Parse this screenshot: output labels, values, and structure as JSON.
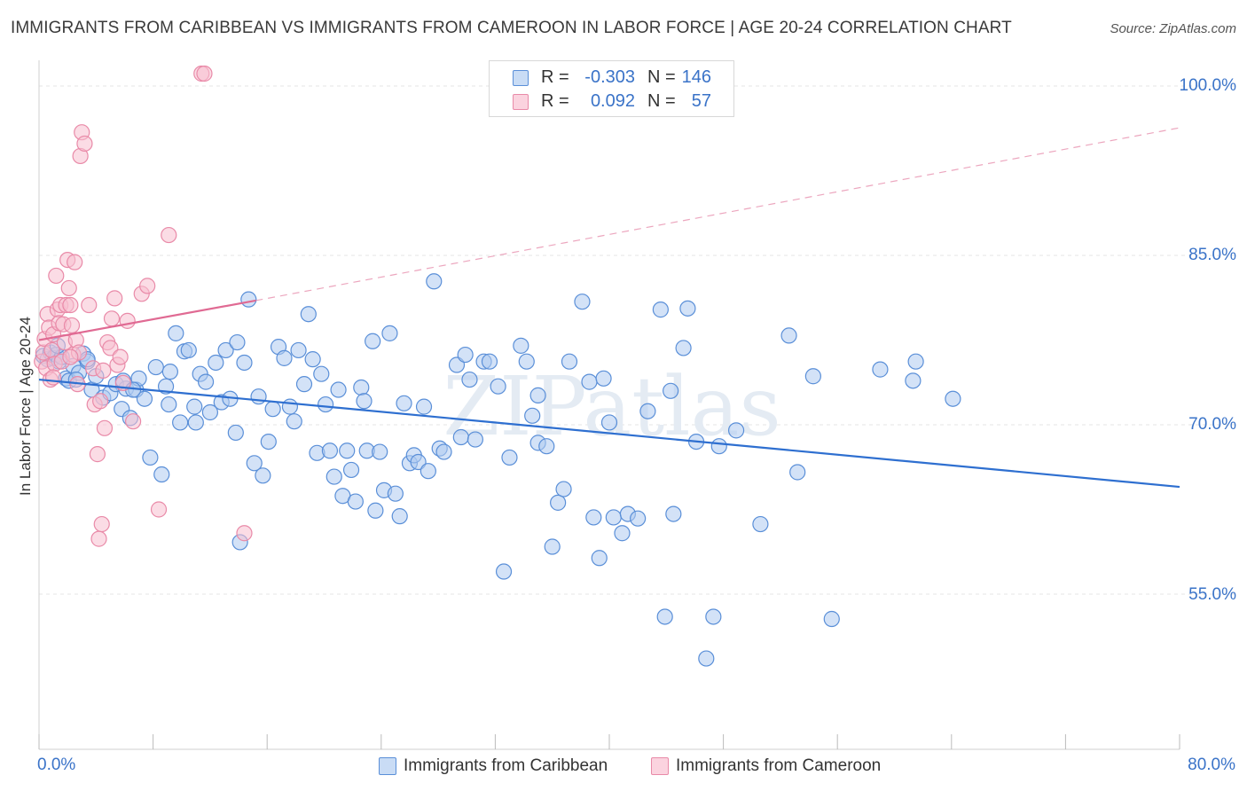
{
  "title": "IMMIGRANTS FROM CARIBBEAN VS IMMIGRANTS FROM CAMEROON IN LABOR FORCE | AGE 20-24 CORRELATION CHART",
  "source": "Source: ZipAtlas.com",
  "watermark": "ZIPatlas",
  "legend": {
    "rows": [
      {
        "r_label": "R =",
        "r_value": "-0.303",
        "n_label": "N =",
        "n_value": "146"
      },
      {
        "r_label": "R =",
        "r_value": "0.092",
        "n_label": "N =",
        "n_value": "57"
      }
    ]
  },
  "colors": {
    "caribbean_fill": "#aecbf0",
    "caribbean_stroke": "#5a8fd8",
    "caribbean_line": "#2e6fd0",
    "cameroon_fill": "#f8bfd0",
    "cameroon_stroke": "#e98aa8",
    "cameroon_line": "#e06a93",
    "tick_text": "#3a73c8",
    "grid": "#e6e6e6"
  },
  "chart_data": {
    "type": "scatter",
    "title": "IMMIGRANTS FROM CARIBBEAN VS IMMIGRANTS FROM CAMEROON IN LABOR FORCE | AGE 20-24 CORRELATION CHART",
    "ylabel": "In Labor Force | Age 20-24",
    "xlim": [
      0,
      80
    ],
    "ylim": [
      40,
      101.5
    ],
    "x_tick_labels": [
      "0.0%",
      "80.0%"
    ],
    "y_ticks": [
      55,
      70,
      85,
      100
    ],
    "y_tick_labels": [
      "55.0%",
      "70.0%",
      "85.0%",
      "100.0%"
    ],
    "grid": "horizontal dashed",
    "legend_position": "bottom-center",
    "series": [
      {
        "name": "Immigrants from Caribbean",
        "trend": {
          "x0": 0,
          "y0": 74.0,
          "x1": 80,
          "y1": 64.5,
          "style": "solid"
        },
        "points": [
          [
            0.3,
            76.1
          ],
          [
            0.6,
            75.8
          ],
          [
            0.8,
            76.4
          ],
          [
            1.0,
            75.9
          ],
          [
            1.2,
            76.2
          ],
          [
            1.4,
            75.6
          ],
          [
            1.6,
            76.0
          ],
          [
            1.9,
            74.1
          ],
          [
            2.1,
            73.9
          ],
          [
            2.4,
            75.2
          ],
          [
            2.8,
            74.6
          ],
          [
            3.1,
            76.3
          ],
          [
            3.4,
            75.6
          ],
          [
            3.7,
            73.1
          ],
          [
            4.0,
            74.3
          ],
          [
            4.5,
            72.4
          ],
          [
            5.0,
            72.8
          ],
          [
            5.4,
            73.6
          ],
          [
            5.8,
            71.4
          ],
          [
            6.1,
            73.2
          ],
          [
            6.4,
            70.6
          ],
          [
            6.8,
            73.1
          ],
          [
            7.0,
            74.1
          ],
          [
            7.4,
            72.3
          ],
          [
            7.8,
            67.1
          ],
          [
            8.2,
            75.1
          ],
          [
            8.6,
            65.6
          ],
          [
            8.9,
            73.4
          ],
          [
            9.1,
            71.8
          ],
          [
            9.6,
            78.1
          ],
          [
            9.9,
            70.2
          ],
          [
            10.2,
            76.5
          ],
          [
            10.5,
            76.6
          ],
          [
            10.9,
            71.6
          ],
          [
            11.3,
            74.5
          ],
          [
            11.7,
            73.8
          ],
          [
            12.0,
            71.1
          ],
          [
            12.4,
            75.5
          ],
          [
            12.8,
            72.0
          ],
          [
            13.1,
            76.6
          ],
          [
            13.4,
            72.3
          ],
          [
            13.8,
            69.3
          ],
          [
            14.1,
            59.6
          ],
          [
            14.4,
            75.5
          ],
          [
            14.7,
            81.1
          ],
          [
            15.1,
            66.6
          ],
          [
            15.4,
            72.5
          ],
          [
            15.7,
            65.5
          ],
          [
            16.1,
            68.5
          ],
          [
            16.4,
            71.4
          ],
          [
            16.8,
            76.9
          ],
          [
            17.2,
            75.9
          ],
          [
            17.6,
            71.6
          ],
          [
            17.9,
            70.3
          ],
          [
            18.2,
            76.6
          ],
          [
            18.6,
            73.6
          ],
          [
            18.9,
            79.8
          ],
          [
            19.2,
            75.8
          ],
          [
            19.5,
            67.5
          ],
          [
            19.8,
            74.5
          ],
          [
            20.1,
            71.8
          ],
          [
            20.4,
            67.7
          ],
          [
            20.7,
            65.4
          ],
          [
            21.0,
            73.1
          ],
          [
            21.3,
            63.7
          ],
          [
            21.6,
            67.7
          ],
          [
            21.9,
            66.0
          ],
          [
            22.2,
            63.2
          ],
          [
            22.6,
            73.3
          ],
          [
            23.0,
            67.7
          ],
          [
            23.4,
            77.4
          ],
          [
            23.6,
            62.4
          ],
          [
            23.9,
            67.6
          ],
          [
            24.2,
            64.2
          ],
          [
            24.6,
            78.1
          ],
          [
            25.0,
            63.9
          ],
          [
            25.3,
            61.9
          ],
          [
            25.6,
            71.9
          ],
          [
            26.0,
            66.6
          ],
          [
            26.3,
            67.3
          ],
          [
            26.6,
            66.7
          ],
          [
            27.0,
            71.6
          ],
          [
            27.3,
            65.9
          ],
          [
            27.7,
            82.7
          ],
          [
            28.1,
            67.9
          ],
          [
            28.4,
            67.6
          ],
          [
            29.3,
            75.3
          ],
          [
            29.6,
            68.9
          ],
          [
            29.9,
            76.2
          ],
          [
            30.2,
            74.0
          ],
          [
            30.6,
            68.7
          ],
          [
            31.2,
            75.6
          ],
          [
            31.6,
            75.6
          ],
          [
            32.2,
            73.4
          ],
          [
            32.6,
            57.0
          ],
          [
            33.0,
            67.1
          ],
          [
            33.8,
            77.0
          ],
          [
            34.2,
            75.6
          ],
          [
            34.6,
            70.8
          ],
          [
            35.0,
            68.4
          ],
          [
            35.6,
            68.1
          ],
          [
            36.0,
            59.2
          ],
          [
            36.4,
            63.1
          ],
          [
            36.8,
            64.3
          ],
          [
            37.2,
            75.6
          ],
          [
            38.1,
            80.9
          ],
          [
            38.6,
            73.8
          ],
          [
            38.9,
            61.8
          ],
          [
            39.3,
            58.2
          ],
          [
            39.6,
            74.1
          ],
          [
            40.0,
            70.2
          ],
          [
            40.3,
            61.8
          ],
          [
            40.9,
            60.4
          ],
          [
            41.3,
            62.1
          ],
          [
            42.0,
            61.7
          ],
          [
            42.7,
            71.2
          ],
          [
            43.6,
            80.2
          ],
          [
            43.9,
            53.0
          ],
          [
            44.3,
            73.0
          ],
          [
            44.5,
            62.1
          ],
          [
            45.2,
            76.8
          ],
          [
            45.5,
            80.3
          ],
          [
            46.1,
            68.5
          ],
          [
            46.8,
            49.3
          ],
          [
            47.7,
            68.1
          ],
          [
            47.3,
            53.0
          ],
          [
            48.9,
            69.5
          ],
          [
            50.6,
            61.2
          ],
          [
            52.6,
            77.9
          ],
          [
            53.2,
            65.8
          ],
          [
            54.3,
            74.3
          ],
          [
            55.6,
            52.8
          ],
          [
            59.0,
            74.9
          ],
          [
            61.3,
            73.9
          ],
          [
            61.5,
            75.6
          ],
          [
            64.1,
            72.3
          ],
          [
            1.3,
            77.0
          ],
          [
            2.6,
            74.0
          ],
          [
            3.4,
            75.8
          ],
          [
            5.9,
            73.9
          ],
          [
            6.6,
            73.1
          ],
          [
            9.2,
            74.7
          ],
          [
            11.0,
            70.2
          ],
          [
            13.9,
            77.3
          ],
          [
            22.8,
            72.1
          ],
          [
            35.0,
            72.6
          ]
        ]
      },
      {
        "name": "Immigrants from Cameroon",
        "trend": {
          "x0": 0,
          "y0": 77.5,
          "x1": 15.2,
          "y1": 81.0,
          "extended_x1": 80,
          "extended_y1": 96.3,
          "style": "solid then dashed"
        },
        "points": [
          [
            0.2,
            75.6
          ],
          [
            0.3,
            76.4
          ],
          [
            0.4,
            77.6
          ],
          [
            0.5,
            75.0
          ],
          [
            0.6,
            79.8
          ],
          [
            0.7,
            78.6
          ],
          [
            0.8,
            74.0
          ],
          [
            0.9,
            76.6
          ],
          [
            1.0,
            78.0
          ],
          [
            1.1,
            75.4
          ],
          [
            1.2,
            83.2
          ],
          [
            1.3,
            80.2
          ],
          [
            1.4,
            79.0
          ],
          [
            1.5,
            80.6
          ],
          [
            1.6,
            75.6
          ],
          [
            1.7,
            78.9
          ],
          [
            1.8,
            77.3
          ],
          [
            1.9,
            80.6
          ],
          [
            2.0,
            84.6
          ],
          [
            2.1,
            82.1
          ],
          [
            2.2,
            80.6
          ],
          [
            2.3,
            78.8
          ],
          [
            2.4,
            76.2
          ],
          [
            2.5,
            84.4
          ],
          [
            2.6,
            77.5
          ],
          [
            2.7,
            73.6
          ],
          [
            2.8,
            76.4
          ],
          [
            2.9,
            93.8
          ],
          [
            3.0,
            95.9
          ],
          [
            3.2,
            94.9
          ],
          [
            3.5,
            80.6
          ],
          [
            3.8,
            75.0
          ],
          [
            3.9,
            71.8
          ],
          [
            4.1,
            67.4
          ],
          [
            4.2,
            59.9
          ],
          [
            4.3,
            72.1
          ],
          [
            4.4,
            61.2
          ],
          [
            4.5,
            74.8
          ],
          [
            4.6,
            69.7
          ],
          [
            4.8,
            77.3
          ],
          [
            5.0,
            76.8
          ],
          [
            5.1,
            79.4
          ],
          [
            5.3,
            81.2
          ],
          [
            5.5,
            75.3
          ],
          [
            5.7,
            76.0
          ],
          [
            5.9,
            73.7
          ],
          [
            6.2,
            79.2
          ],
          [
            6.6,
            70.3
          ],
          [
            7.2,
            81.6
          ],
          [
            7.6,
            82.3
          ],
          [
            8.4,
            62.5
          ],
          [
            9.1,
            86.8
          ],
          [
            11.4,
            101.1
          ],
          [
            11.6,
            101.1
          ],
          [
            14.4,
            60.4
          ],
          [
            1.0,
            74.2
          ],
          [
            2.2,
            76.0
          ]
        ]
      }
    ]
  },
  "bottom_legend": {
    "caribbean": "Immigrants from Caribbean",
    "cameroon": "Immigrants from Cameroon"
  }
}
